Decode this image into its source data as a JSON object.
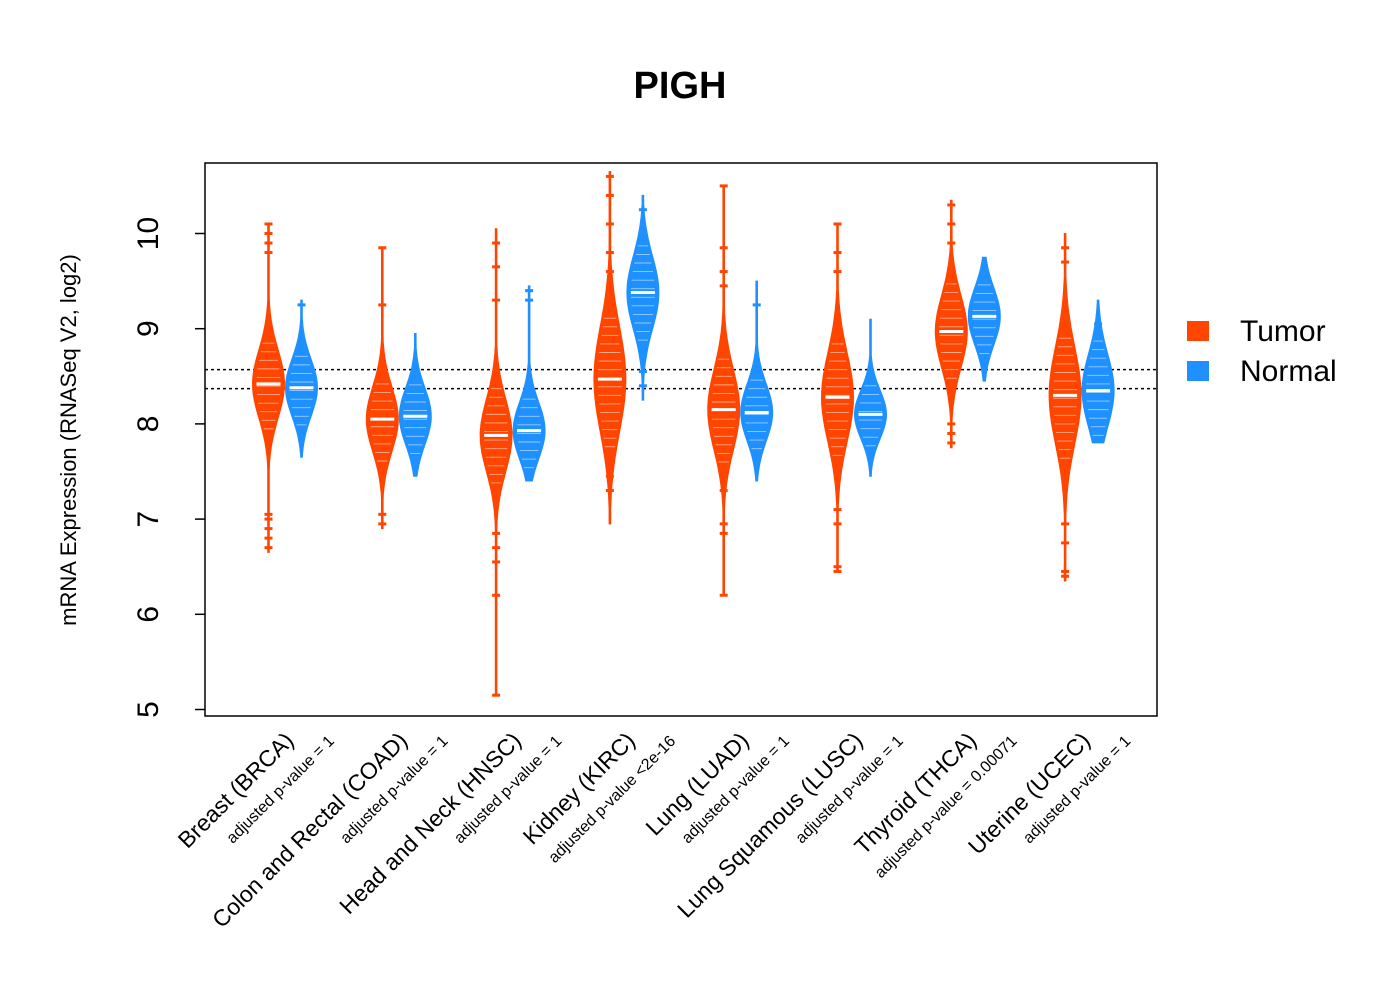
{
  "chart_data": {
    "type": "violin",
    "title": "PIGH",
    "ylabel": "mRNA Expression (RNASeq V2, log2)",
    "xlabel": "",
    "ylim": [
      5,
      10.7
    ],
    "yticks": [
      "5",
      "6",
      "7",
      "8",
      "9",
      "10"
    ],
    "reference_lines": [
      8.37,
      8.57
    ],
    "legend": {
      "position": "right",
      "entries": [
        {
          "name": "Tumor",
          "color": "#FF4500"
        },
        {
          "name": "Normal",
          "color": "#1E90FF"
        }
      ]
    },
    "colors": {
      "tumor": "#FF4500",
      "normal": "#1E90FF"
    },
    "groups": [
      {
        "category": "Breast (BRCA)",
        "pvalue": "adjusted p-value = 1",
        "tumor": {
          "min": 6.65,
          "max": 10.1,
          "median": 8.42,
          "q1": 8.2,
          "q3": 8.62,
          "outliers": [
            6.7,
            6.8,
            6.9,
            7.0,
            7.05,
            9.8,
            9.9,
            10.0,
            10.1
          ]
        },
        "normal": {
          "min": 7.65,
          "max": 9.3,
          "median": 8.38,
          "q1": 8.2,
          "q3": 8.55,
          "outliers": [
            9.25
          ]
        }
      },
      {
        "category": "Colon and Rectal (COAD)",
        "pvalue": "adjusted p-value = 1",
        "tumor": {
          "min": 6.9,
          "max": 9.85,
          "median": 8.05,
          "q1": 7.85,
          "q3": 8.25,
          "outliers": [
            6.95,
            7.05,
            9.25,
            9.85
          ]
        },
        "normal": {
          "min": 7.45,
          "max": 8.95,
          "median": 8.08,
          "q1": 7.9,
          "q3": 8.25,
          "outliers": []
        }
      },
      {
        "category": "Head and Neck (HNSC)",
        "pvalue": "adjusted p-value = 1",
        "tumor": {
          "min": 5.15,
          "max": 10.05,
          "median": 7.88,
          "q1": 7.65,
          "q3": 8.1,
          "outliers": [
            5.15,
            6.2,
            6.55,
            6.7,
            6.85,
            9.3,
            9.65,
            9.9
          ]
        },
        "normal": {
          "min": 7.4,
          "max": 9.45,
          "median": 7.93,
          "q1": 7.75,
          "q3": 8.1,
          "outliers": [
            9.3,
            9.4
          ]
        }
      },
      {
        "category": "Kidney (KIRC)",
        "pvalue": "adjusted p-value <2e-16",
        "tumor": {
          "min": 6.95,
          "max": 10.65,
          "median": 8.47,
          "q1": 8.15,
          "q3": 8.8,
          "outliers": [
            7.3,
            7.45,
            9.6,
            9.8,
            10.1,
            10.4,
            10.6
          ]
        },
        "normal": {
          "min": 8.25,
          "max": 10.4,
          "median": 9.38,
          "q1": 9.15,
          "q3": 9.6,
          "outliers": [
            8.4,
            8.55,
            8.75,
            10.25
          ]
        }
      },
      {
        "category": "Lung (LUAD)",
        "pvalue": "adjusted p-value = 1",
        "tumor": {
          "min": 6.2,
          "max": 10.5,
          "median": 8.15,
          "q1": 7.9,
          "q3": 8.4,
          "outliers": [
            6.2,
            6.85,
            6.95,
            7.3,
            9.45,
            9.6,
            9.85,
            10.5
          ]
        },
        "normal": {
          "min": 7.4,
          "max": 9.5,
          "median": 8.12,
          "q1": 7.95,
          "q3": 8.3,
          "outliers": [
            9.25
          ]
        }
      },
      {
        "category": "Lung Squamous (LUSC)",
        "pvalue": "adjusted p-value = 1",
        "tumor": {
          "min": 6.45,
          "max": 10.1,
          "median": 8.28,
          "q1": 8.0,
          "q3": 8.55,
          "outliers": [
            6.45,
            6.5,
            6.95,
            7.1,
            9.6,
            9.8,
            10.1
          ]
        },
        "normal": {
          "min": 7.45,
          "max": 9.1,
          "median": 8.1,
          "q1": 7.95,
          "q3": 8.25,
          "outliers": []
        }
      },
      {
        "category": "Thyroid (THCA)",
        "pvalue": "adjusted p-value = 0.00071",
        "tumor": {
          "min": 7.75,
          "max": 10.35,
          "median": 8.97,
          "q1": 8.75,
          "q3": 9.2,
          "outliers": [
            7.8,
            7.9,
            8.0,
            9.9,
            10.1,
            10.3
          ]
        },
        "normal": {
          "min": 8.45,
          "max": 9.75,
          "median": 9.13,
          "q1": 8.95,
          "q3": 9.3,
          "outliers": []
        }
      },
      {
        "category": "Uterine (UCEC)",
        "pvalue": "adjusted p-value = 1",
        "tumor": {
          "min": 6.35,
          "max": 10.0,
          "median": 8.3,
          "q1": 8.0,
          "q3": 8.6,
          "outliers": [
            6.4,
            6.45,
            6.75,
            6.95,
            9.7,
            9.85
          ]
        },
        "normal": {
          "min": 7.8,
          "max": 9.3,
          "median": 8.35,
          "q1": 8.15,
          "q3": 8.6,
          "outliers": [
            9.05
          ]
        }
      }
    ]
  }
}
